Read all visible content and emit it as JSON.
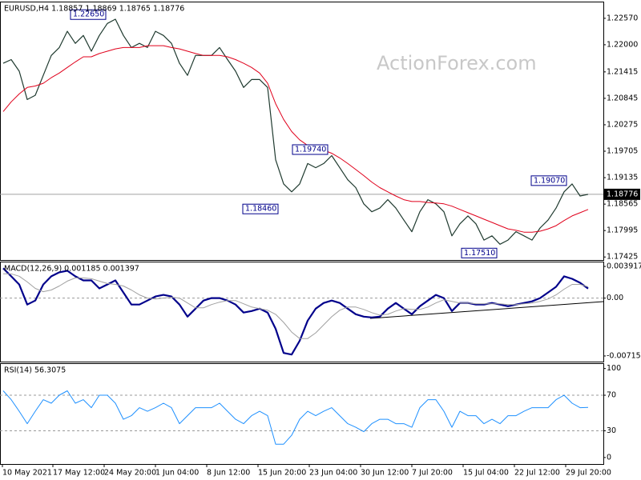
{
  "chart_data": [
    {
      "type": "line",
      "title": "EURUSD,H4  1.18857 1.18869 1.18765 1.18776",
      "watermark": "ActionForex.com",
      "xlim": [
        -0.4,
        74.9
      ],
      "ylim": [
        1.1736,
        1.2293
      ],
      "yticks": [
        {
          "value": 1.2257,
          "label": "1.22570"
        },
        {
          "value": 1.22,
          "label": "1.22000"
        },
        1.21415,
        1.20845,
        1.20275,
        1.19705,
        1.19135,
        1.18565,
        1.17995,
        1.17425
      ],
      "current_price": 1.18776,
      "current_color": "#000000",
      "annotations": [
        {
          "value": 1.2265,
          "label": "1.22650"
        },
        {
          "value": 1.1846,
          "label": "1.18460"
        },
        {
          "value": 1.1974,
          "label": "1.19740"
        },
        {
          "value": 1.1907,
          "label": "1.19070"
        },
        {
          "value": 1.1751,
          "label": "1.17510"
        }
      ],
      "series": [
        {
          "color": "#1f3a2f",
          "width": 1.2,
          "values": [
            1.216,
            1.2168,
            1.2143,
            1.2082,
            1.2091,
            1.2134,
            1.2177,
            1.2194,
            1.2229,
            1.2203,
            1.222,
            1.2186,
            1.222,
            1.2246,
            1.2255,
            1.222,
            1.2194,
            1.2203,
            1.2194,
            1.2229,
            1.222,
            1.2203,
            1.216,
            1.2134,
            1.2177,
            1.2177,
            1.2177,
            1.2194,
            1.2168,
            1.2143,
            1.2108,
            1.2125,
            1.2125,
            1.2108,
            1.1952,
            1.19,
            1.1883,
            1.19,
            1.1944,
            1.1935,
            1.1944,
            1.1961,
            1.1935,
            1.1909,
            1.1892,
            1.1857,
            1.184,
            1.1848,
            1.1866,
            1.1848,
            1.1822,
            1.1797,
            1.184,
            1.1866,
            1.1857,
            1.184,
            1.1788,
            1.1814,
            1.1831,
            1.1814,
            1.1779,
            1.1788,
            1.177,
            1.1779,
            1.1797,
            1.1788,
            1.1779,
            1.1805,
            1.1822,
            1.1848,
            1.1883,
            1.19,
            1.1874,
            1.18776
          ]
        },
        {
          "color": "#e0001b",
          "width": 1,
          "values": [
            1.2056,
            1.2077,
            1.2094,
            1.2108,
            1.2111,
            1.2117,
            1.2129,
            1.2139,
            1.2151,
            1.2163,
            1.2174,
            1.2174,
            1.2181,
            1.2186,
            1.2191,
            1.2194,
            1.2194,
            1.2194,
            1.2198,
            1.2198,
            1.2198,
            1.2194,
            1.2191,
            1.2186,
            1.2181,
            1.2177,
            1.2177,
            1.2177,
            1.2174,
            1.2168,
            1.216,
            1.2151,
            1.2139,
            1.2117,
            1.2073,
            1.2039,
            1.2013,
            1.1995,
            1.1983,
            1.1978,
            1.1973,
            1.1966,
            1.1956,
            1.1944,
            1.1931,
            1.1918,
            1.1904,
            1.1892,
            1.1883,
            1.1874,
            1.1866,
            1.1862,
            1.1862,
            1.186,
            1.1859,
            1.1857,
            1.1852,
            1.1845,
            1.1838,
            1.1831,
            1.1824,
            1.1817,
            1.181,
            1.1803,
            1.18,
            1.1796,
            1.1796,
            1.1798,
            1.1803,
            1.181,
            1.1821,
            1.1831,
            1.1838,
            1.1845
          ]
        }
      ]
    },
    {
      "type": "line",
      "title": "MACD(12,26,9) 0.001185 0.001397",
      "xlim": [
        -0.4,
        74.9
      ],
      "ylim": [
        -0.00785,
        0.004515
      ],
      "yticks": [
        0.003917,
        {
          "value": 0,
          "label": "0.00"
        },
        -0.007152
      ],
      "levels": [
        0
      ],
      "series": [
        {
          "color": "#00008b",
          "width": 2.2,
          "values": [
            0.00369,
            0.00269,
            0.00169,
            -0.0008,
            -0.0003,
            0.00169,
            0.00269,
            0.00319,
            0.00339,
            0.00269,
            0.00219,
            0.00219,
            0.0012,
            0.00169,
            0.00219,
            0.0007,
            -0.0008,
            -0.0008,
            -0.0003,
            0.0002,
            0.0004,
            0.0002,
            -0.0008,
            -0.00229,
            -0.0013,
            -0.0003,
            0,
            0,
            -0.0003,
            -0.0008,
            -0.00179,
            -0.0016,
            -0.0013,
            -0.00179,
            -0.00379,
            -0.00678,
            -0.00698,
            -0.00528,
            -0.00279,
            -0.0013,
            -0.0006,
            -0.0003,
            -0.0006,
            -0.0013,
            -0.00199,
            -0.00229,
            -0.00239,
            -0.00229,
            -0.0013,
            -0.0006,
            -0.0013,
            -0.00199,
            -0.001,
            -0.0003,
            0.0004,
            0,
            -0.0016,
            -0.0006,
            -0.0006,
            -0.0008,
            -0.0008,
            -0.0006,
            -0.0008,
            -0.001,
            -0.0008,
            -0.0006,
            -0.0004,
            0,
            0.0007,
            0.0014,
            0.00269,
            0.00239,
            0.00189,
            0.001185
          ]
        },
        {
          "color": "#a0a0a0",
          "width": 1,
          "values": [
            0.003,
            0.003,
            0.0027,
            0.002,
            0.0012,
            0.0008,
            0.001,
            0.0015,
            0.0021,
            0.0025,
            0.0025,
            0.0024,
            0.0021,
            0.0018,
            0.0017,
            0.0015,
            0.001,
            0.0004,
            0.0,
            -0.0001,
            0.0,
            0.0001,
            0.0,
            -0.0006,
            -0.0012,
            -0.0012,
            -0.0008,
            -0.0005,
            -0.0003,
            -0.0003,
            -0.0007,
            -0.0011,
            -0.0013,
            -0.0015,
            -0.002,
            -0.003,
            -0.0042,
            -0.005,
            -0.005,
            -0.0043,
            -0.0033,
            -0.0023,
            -0.0015,
            -0.0011,
            -0.0011,
            -0.0014,
            -0.0018,
            -0.0021,
            -0.002,
            -0.0016,
            -0.0013,
            -0.0014,
            -0.0014,
            -0.0011,
            -0.0006,
            -0.0002,
            -0.0004,
            -0.0006,
            -0.0006,
            -0.0007,
            -0.0007,
            -0.0007,
            -0.0007,
            -0.0008,
            -0.0008,
            -0.0007,
            -0.0006,
            -0.0004,
            -0.0001,
            0.0004,
            0.0011,
            0.0017,
            0.0017,
            0.001397
          ]
        }
      ]
    },
    {
      "type": "line",
      "title": "RSI(14) 56.3075",
      "xlim": [
        -0.4,
        74.9
      ],
      "ylim": [
        -7.3,
        106
      ],
      "yticks": [
        100,
        70,
        30,
        0
      ],
      "levels": [
        70,
        30
      ],
      "xticks": [
        {
          "value": -0.1,
          "label": "10 May 2021"
        },
        {
          "value": 6.2,
          "label": "17 May 12:00"
        },
        {
          "value": 12.6,
          "label": "24 May 20:00"
        },
        {
          "value": 19,
          "label": "1 Jun 04:00"
        },
        {
          "value": 25.4,
          "label": "8 Jun 12:00"
        },
        {
          "value": 31.8,
          "label": "15 Jun 20:00"
        },
        {
          "value": 38.2,
          "label": "23 Jun 04:00"
        },
        {
          "value": 44.6,
          "label": "30 Jun 12:00"
        },
        {
          "value": 51,
          "label": "7 Jul 20:00"
        },
        {
          "value": 57.4,
          "label": "15 Jul 04:00"
        },
        {
          "value": 63.8,
          "label": "22 Jul 12:00"
        },
        {
          "value": 70.2,
          "label": "29 Jul 20:00"
        }
      ],
      "series": [
        {
          "color": "#1e90ff",
          "width": 1,
          "values": [
            75,
            65,
            52,
            38,
            52,
            65,
            61,
            70,
            75,
            61,
            65,
            56,
            70,
            70,
            61,
            43,
            47,
            56,
            52,
            56,
            61,
            56,
            38,
            47,
            56,
            56,
            56,
            61,
            52,
            43,
            38,
            47,
            52,
            47,
            15,
            15,
            25,
            43,
            52,
            47,
            52,
            56,
            47,
            38,
            34,
            29,
            38,
            43,
            43,
            38,
            38,
            34,
            56,
            65,
            65,
            52,
            34,
            52,
            47,
            47,
            38,
            43,
            38,
            47,
            47,
            52,
            56,
            56,
            56,
            65,
            70,
            61,
            56,
            56.3075
          ]
        }
      ]
    }
  ]
}
